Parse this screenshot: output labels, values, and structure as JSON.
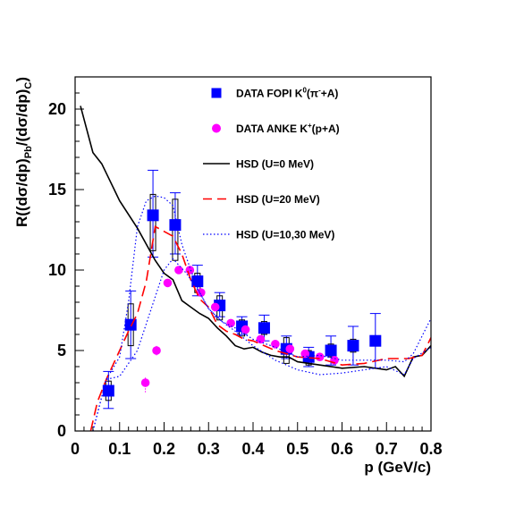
{
  "chart_data": {
    "type": "scatter",
    "xlabel": "p (GeV/c)",
    "ylabel_parts": {
      "a": "R((d",
      "b": "σ",
      "c": "/dp)",
      "d": "Pb",
      "e": "/(d",
      "f": "σ",
      "g": "/dp)",
      "h": "C",
      "i": ")"
    },
    "xlim": [
      0,
      0.8
    ],
    "ylim": [
      0,
      22
    ],
    "x_ticks": [
      0,
      0.1,
      0.2,
      0.3,
      0.4,
      0.5,
      0.6,
      0.7,
      0.8
    ],
    "x_tick_labels": [
      "0",
      "0.1",
      "0.2",
      "0.3",
      "0.4",
      "0.5",
      "0.6",
      "0.7",
      "0.8"
    ],
    "y_ticks": [
      0,
      5,
      10,
      15,
      20
    ],
    "y_tick_labels": [
      "0",
      "5",
      "10",
      "15",
      "20"
    ],
    "legend_placement": "top-right",
    "grid": false,
    "series": [
      {
        "name": "DATA FOPI K⁰(π⁻+A)",
        "kind": "points",
        "marker": "square",
        "color": "#0000ff",
        "points": [
          {
            "x": 0.075,
            "y": 2.5,
            "yerr_lo": 1.1,
            "yerr_hi": 1.2,
            "sys_lo": 0.6,
            "sys_hi": 0.6
          },
          {
            "x": 0.125,
            "y": 6.6,
            "yerr_lo": 2.1,
            "yerr_hi": 2.1,
            "sys_lo": 1.3,
            "sys_hi": 1.3
          },
          {
            "x": 0.175,
            "y": 13.4,
            "yerr_lo": 2.6,
            "yerr_hi": 2.8,
            "sys_lo": 2.2,
            "sys_hi": 1.3
          },
          {
            "x": 0.225,
            "y": 12.8,
            "yerr_lo": 1.8,
            "yerr_hi": 2.0,
            "sys_lo": 2.2,
            "sys_hi": 1.6
          },
          {
            "x": 0.275,
            "y": 9.3,
            "yerr_lo": 0.9,
            "yerr_hi": 1.0,
            "sys_lo": 0.7,
            "sys_hi": 0.5
          },
          {
            "x": 0.325,
            "y": 7.8,
            "yerr_lo": 0.7,
            "yerr_hi": 0.8,
            "sys_lo": 0.9,
            "sys_hi": 0.6
          },
          {
            "x": 0.375,
            "y": 6.5,
            "yerr_lo": 0.5,
            "yerr_hi": 0.6,
            "sys_lo": 0.6,
            "sys_hi": 0.4
          },
          {
            "x": 0.425,
            "y": 6.4,
            "yerr_lo": 0.8,
            "yerr_hi": 0.8,
            "sys_lo": 0.4,
            "sys_hi": 0.4
          },
          {
            "x": 0.475,
            "y": 5.1,
            "yerr_lo": 0.6,
            "yerr_hi": 0.8,
            "sys_lo": 0.9,
            "sys_hi": 0.7
          },
          {
            "x": 0.525,
            "y": 4.6,
            "yerr_lo": 0.6,
            "yerr_hi": 0.6,
            "sys_lo": 0.5,
            "sys_hi": 0.4
          },
          {
            "x": 0.575,
            "y": 5.0,
            "yerr_lo": 0.9,
            "yerr_hi": 0.9,
            "sys_lo": 0.4,
            "sys_hi": 0.4
          },
          {
            "x": 0.625,
            "y": 5.3,
            "yerr_lo": 1.2,
            "yerr_hi": 1.2,
            "sys_lo": 0.4,
            "sys_hi": 0.4
          },
          {
            "x": 0.675,
            "y": 5.6,
            "yerr_lo": 1.7,
            "yerr_hi": 1.7,
            "sys_lo": 0.0,
            "sys_hi": 0.0
          }
        ]
      },
      {
        "name": "DATA ANKE K⁺(p+A)",
        "kind": "points",
        "marker": "circle",
        "color": "#ff00ff",
        "points": [
          {
            "x": 0.158,
            "y": 3.0,
            "yerr_lo": 0.6,
            "yerr_hi": 0.4
          },
          {
            "x": 0.183,
            "y": 5.0,
            "yerr_lo": 0.3,
            "yerr_hi": 0.3
          },
          {
            "x": 0.208,
            "y": 9.2,
            "yerr_lo": 0.2,
            "yerr_hi": 0.2
          },
          {
            "x": 0.233,
            "y": 10.0,
            "yerr_lo": 0.2,
            "yerr_hi": 0.2
          },
          {
            "x": 0.258,
            "y": 10.0,
            "yerr_lo": 0.2,
            "yerr_hi": 0.2
          },
          {
            "x": 0.283,
            "y": 8.6,
            "yerr_lo": 0.2,
            "yerr_hi": 0.2
          },
          {
            "x": 0.315,
            "y": 7.7,
            "yerr_lo": 0.2,
            "yerr_hi": 0.2
          },
          {
            "x": 0.35,
            "y": 6.7,
            "yerr_lo": 0.2,
            "yerr_hi": 0.2
          },
          {
            "x": 0.383,
            "y": 6.3,
            "yerr_lo": 0.2,
            "yerr_hi": 0.2
          },
          {
            "x": 0.417,
            "y": 5.7,
            "yerr_lo": 0.2,
            "yerr_hi": 0.2
          },
          {
            "x": 0.45,
            "y": 5.4,
            "yerr_lo": 0.2,
            "yerr_hi": 0.2
          },
          {
            "x": 0.483,
            "y": 5.1,
            "yerr_lo": 0.2,
            "yerr_hi": 0.2
          },
          {
            "x": 0.517,
            "y": 4.8,
            "yerr_lo": 0.2,
            "yerr_hi": 0.2
          },
          {
            "x": 0.55,
            "y": 4.6,
            "yerr_lo": 0.2,
            "yerr_hi": 0.2
          },
          {
            "x": 0.583,
            "y": 4.4,
            "yerr_lo": 0.2,
            "yerr_hi": 0.2
          }
        ]
      },
      {
        "name": "HSD (U=0 MeV)",
        "kind": "line",
        "color": "#000000",
        "dash": "solid",
        "x": [
          0.012,
          0.04,
          0.06,
          0.1,
          0.14,
          0.18,
          0.2,
          0.22,
          0.24,
          0.26,
          0.28,
          0.3,
          0.32,
          0.34,
          0.36,
          0.38,
          0.4,
          0.42,
          0.44,
          0.46,
          0.48,
          0.5,
          0.55,
          0.6,
          0.65,
          0.7,
          0.72,
          0.74,
          0.76,
          0.78,
          0.8
        ],
        "y": [
          20.2,
          17.3,
          16.6,
          14.3,
          12.6,
          10.6,
          9.8,
          9.4,
          8.1,
          7.7,
          7.3,
          7.0,
          6.4,
          5.9,
          5.3,
          5.1,
          5.2,
          4.9,
          4.7,
          4.6,
          4.6,
          4.3,
          4.1,
          3.9,
          4.0,
          3.8,
          4.0,
          3.4,
          4.6,
          4.7,
          5.3
        ]
      },
      {
        "name": "HSD (U=20 MeV)",
        "kind": "line",
        "color": "#ff0000",
        "dash": "dashed",
        "x": [
          0.035,
          0.05,
          0.07,
          0.1,
          0.12,
          0.14,
          0.16,
          0.18,
          0.2,
          0.22,
          0.24,
          0.26,
          0.28,
          0.3,
          0.32,
          0.34,
          0.36,
          0.38,
          0.4,
          0.45,
          0.5,
          0.55,
          0.6,
          0.65,
          0.7,
          0.75,
          0.78,
          0.8
        ],
        "y": [
          0.0,
          1.8,
          3.2,
          5.0,
          6.2,
          7.3,
          9.3,
          12.7,
          12.4,
          12.1,
          11.0,
          9.4,
          8.2,
          7.7,
          6.6,
          6.2,
          6.0,
          5.7,
          5.6,
          5.0,
          4.6,
          4.5,
          4.1,
          4.2,
          4.5,
          4.5,
          4.7,
          5.8
        ]
      },
      {
        "name": "HSD (U=10,30 MeV)",
        "kind": "band",
        "color": "#0000ff",
        "dash": "dotted",
        "lower": {
          "x": [
            0.04,
            0.07,
            0.1,
            0.14,
            0.17,
            0.2,
            0.22,
            0.25,
            0.28,
            0.3,
            0.33,
            0.36,
            0.4,
            0.45,
            0.5,
            0.55,
            0.6,
            0.65,
            0.7,
            0.74,
            0.76,
            0.8
          ],
          "y": [
            0.0,
            3.2,
            3.4,
            5.0,
            7.5,
            10.0,
            10.7,
            9.8,
            8.6,
            7.6,
            6.8,
            6.2,
            5.3,
            4.4,
            3.8,
            3.5,
            3.6,
            3.8,
            4.0,
            3.5,
            4.5,
            5.2
          ]
        },
        "upper": {
          "x": [
            0.04,
            0.07,
            0.1,
            0.12,
            0.14,
            0.16,
            0.18,
            0.2,
            0.22,
            0.24,
            0.26,
            0.28,
            0.3,
            0.33,
            0.36,
            0.4,
            0.45,
            0.5,
            0.55,
            0.6,
            0.65,
            0.7,
            0.74,
            0.76,
            0.8
          ],
          "y": [
            0.0,
            3.2,
            4.6,
            8.0,
            12.7,
            14.3,
            14.6,
            14.5,
            14.0,
            11.6,
            10.0,
            8.6,
            7.6,
            6.8,
            6.4,
            5.7,
            5.2,
            4.6,
            4.7,
            4.4,
            4.4,
            4.4,
            4.3,
            4.8,
            7.0
          ]
        }
      }
    ],
    "legend": [
      {
        "label_main": "DATA FOPI K",
        "label_sup": "0",
        "label_rest": "(π",
        "label_sup2": "-",
        "label_end": "+A)",
        "marker": "square",
        "color": "#0000ff"
      },
      {
        "label_main": "DATA ANKE K",
        "label_sup": "+",
        "label_rest": "(p+A)",
        "label_sup2": "",
        "label_end": "",
        "marker": "circle",
        "color": "#ff00ff"
      },
      {
        "label_main": "HSD (U=0 MeV)",
        "label_sup": "",
        "label_rest": "",
        "label_sup2": "",
        "label_end": "",
        "marker": "line-solid",
        "color": "#000000"
      },
      {
        "label_main": "HSD (U=20 MeV)",
        "label_sup": "",
        "label_rest": "",
        "label_sup2": "",
        "label_end": "",
        "marker": "line-dashed",
        "color": "#ff0000"
      },
      {
        "label_main": "HSD (U=10,30 MeV)",
        "label_sup": "",
        "label_rest": "",
        "label_sup2": "",
        "label_end": "",
        "marker": "line-dotted",
        "color": "#0000ff"
      }
    ]
  }
}
